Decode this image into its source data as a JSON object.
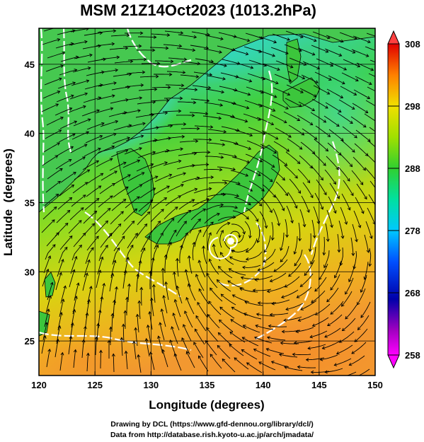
{
  "title": "MSM 21Z14Oct2023 (1013.2hPa)",
  "x_axis": {
    "label": "Longitude (degrees)",
    "range": [
      120,
      150
    ],
    "ticks": [
      120,
      125,
      130,
      135,
      140,
      145,
      150
    ]
  },
  "y_axis": {
    "label": "Latitude  (degrees)",
    "range": [
      22.5,
      47.6
    ],
    "ticks": [
      25,
      30,
      35,
      40,
      45
    ]
  },
  "grid": true,
  "colorbar": {
    "ticks": [
      258,
      268,
      278,
      288,
      298,
      308
    ],
    "range": [
      258,
      308
    ],
    "colors": [
      "#ff00ff",
      "#0000aa",
      "#0050ff",
      "#00c8ff",
      "#00e0a0",
      "#30d030",
      "#a0e000",
      "#f0e000",
      "#ffa000",
      "#ff3000",
      "#e00000"
    ]
  },
  "map_colors": {
    "land": "#3cc83c",
    "cold_sea": "#3ccfe0",
    "warm_sea": "#f2a030",
    "contour": "#ffffff",
    "streamline": "#000000"
  },
  "cyclone": {
    "lon": 137.5,
    "lat": 32.8
  },
  "credits": [
    "Drawing by DCL (https://www.gfd-dennou.org/library/dcl/)",
    "Data from http://database.rish.kyoto-u.ac.jp/arch/jmadata/"
  ]
}
